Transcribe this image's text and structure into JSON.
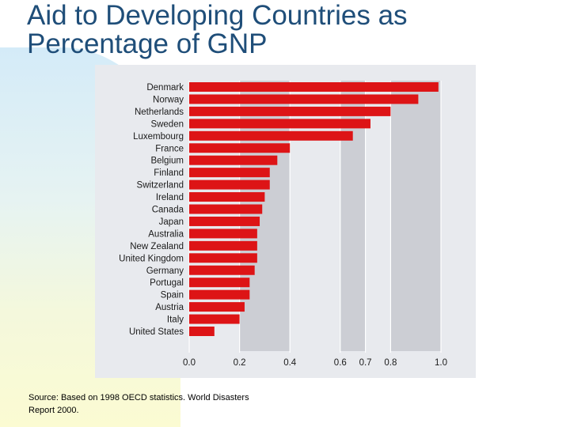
{
  "slide": {
    "title_line1": "Aid to Developing Countries as",
    "title_line2": "Percentage of GNP",
    "source_line1": "Source: Based on 1998 OECD statistics. World Disasters",
    "source_line2": "Report 2000."
  },
  "colors": {
    "title": "#1f4e79",
    "bar": "#dd1416",
    "panel": "#e8eaee",
    "band_dark": "#ccced4",
    "band_light": "#e8eaee"
  },
  "chart_data": {
    "type": "bar",
    "orientation": "horizontal",
    "title": "",
    "xlabel": "",
    "ylabel": "",
    "xlim": [
      0.0,
      1.0
    ],
    "xticks": [
      0.0,
      0.2,
      0.4,
      0.6,
      0.7,
      0.8,
      1.0
    ],
    "xtick_labels": [
      "0.0",
      "0.2",
      "0.4",
      "0.6",
      "0.7",
      "0.8",
      "1.0"
    ],
    "categories": [
      "Denmark",
      "Norway",
      "Netherlands",
      "Sweden",
      "Luxembourg",
      "France",
      "Belgium",
      "Finland",
      "Switzerland",
      "Ireland",
      "Canada",
      "Japan",
      "Australia",
      "New Zealand",
      "United Kingdom",
      "Germany",
      "Portugal",
      "Spain",
      "Austria",
      "Italy",
      "United States"
    ],
    "values": [
      0.99,
      0.91,
      0.8,
      0.72,
      0.65,
      0.4,
      0.35,
      0.32,
      0.32,
      0.3,
      0.29,
      0.28,
      0.27,
      0.27,
      0.27,
      0.26,
      0.24,
      0.24,
      0.22,
      0.2,
      0.1
    ]
  }
}
